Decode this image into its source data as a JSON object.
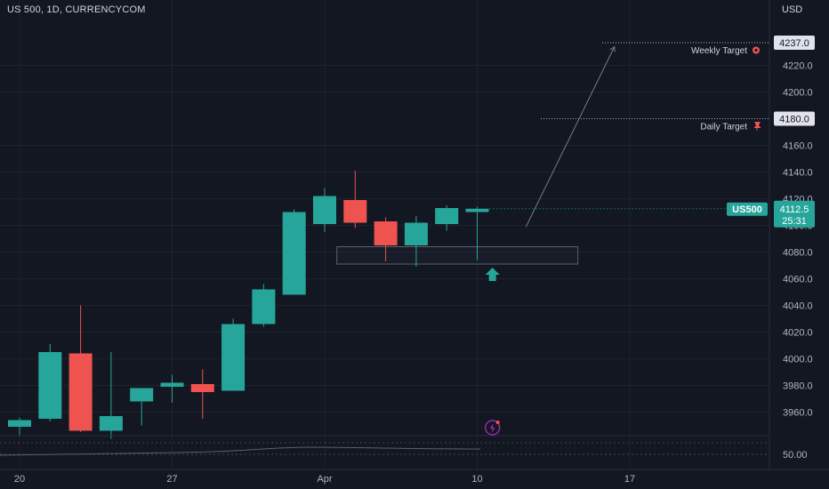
{
  "header": {
    "symbol_title": "US 500, 1D, CURRENCYCOM",
    "currency": "USD"
  },
  "chart_data": {
    "type": "candlestick",
    "symbol": "US 500",
    "interval": "1D",
    "source": "CURRENCYCOM",
    "y_axis": {
      "ticks": [
        "4220.0",
        "4200.0",
        "4160.0",
        "4140.0",
        "4120.0",
        "4100.0",
        "4080.0",
        "4060.0",
        "4040.0",
        "4020.0",
        "4000.0",
        "3980.0",
        "3960.0"
      ],
      "ylim": [
        3945,
        4250
      ]
    },
    "x_axis": {
      "ticks": [
        {
          "label": "20",
          "index": 0.5
        },
        {
          "label": "27",
          "index": 5.5
        },
        {
          "label": "Apr",
          "index": 10.5
        },
        {
          "label": "10",
          "index": 15.5
        },
        {
          "label": "17",
          "index": 20.5
        }
      ]
    },
    "candles": [
      {
        "o": 3949,
        "h": 3956,
        "l": 3942,
        "c": 3954
      },
      {
        "o": 3955,
        "h": 4011,
        "l": 3953,
        "c": 4005
      },
      {
        "o": 4004,
        "h": 4040,
        "l": 3945,
        "c": 3946
      },
      {
        "o": 3946,
        "h": 4005,
        "l": 3940,
        "c": 3957
      },
      {
        "o": 3968,
        "h": 3978,
        "l": 3950,
        "c": 3978
      },
      {
        "o": 3979,
        "h": 3988,
        "l": 3967,
        "c": 3982
      },
      {
        "o": 3981,
        "h": 3992,
        "l": 3955,
        "c": 3975
      },
      {
        "o": 3976,
        "h": 4030,
        "l": 3976,
        "c": 4026
      },
      {
        "o": 4026,
        "h": 4056,
        "l": 4024,
        "c": 4052
      },
      {
        "o": 4048,
        "h": 4112,
        "l": 4048,
        "c": 4110
      },
      {
        "o": 4101,
        "h": 4128,
        "l": 4095,
        "c": 4122
      },
      {
        "o": 4119,
        "h": 4141,
        "l": 4098,
        "c": 4102
      },
      {
        "o": 4103,
        "h": 4106,
        "l": 4073,
        "c": 4085
      },
      {
        "o": 4085,
        "h": 4107,
        "l": 4069,
        "c": 4102
      },
      {
        "o": 4101,
        "h": 4115,
        "l": 4096,
        "c": 4113
      },
      {
        "o": 4110,
        "h": 4114,
        "l": 4074,
        "c": 4112.5
      }
    ],
    "colors": {
      "up": "#26a69a",
      "down": "#ef5350"
    },
    "horizontal_levels": [
      {
        "value": 4237.0,
        "label": "4237.0",
        "annotation": "Weekly Target"
      },
      {
        "value": 4180.0,
        "label": "4180.0",
        "annotation": "Daily Target"
      }
    ],
    "current_price": {
      "label": "US500",
      "value": "4112.5",
      "countdown": "25:31"
    },
    "zone": {
      "from_index": 10.4,
      "to_index": 18.3,
      "top": 4084,
      "bottom": 4071
    },
    "projection": {
      "from_index": 16.6,
      "from_value": 4099,
      "to_index": 19.5,
      "to_value": 4234
    },
    "signal_arrow": {
      "index": 15.5,
      "value": 4063
    },
    "indicator_pane": {
      "value_label": "50.00"
    },
    "grid": true
  }
}
